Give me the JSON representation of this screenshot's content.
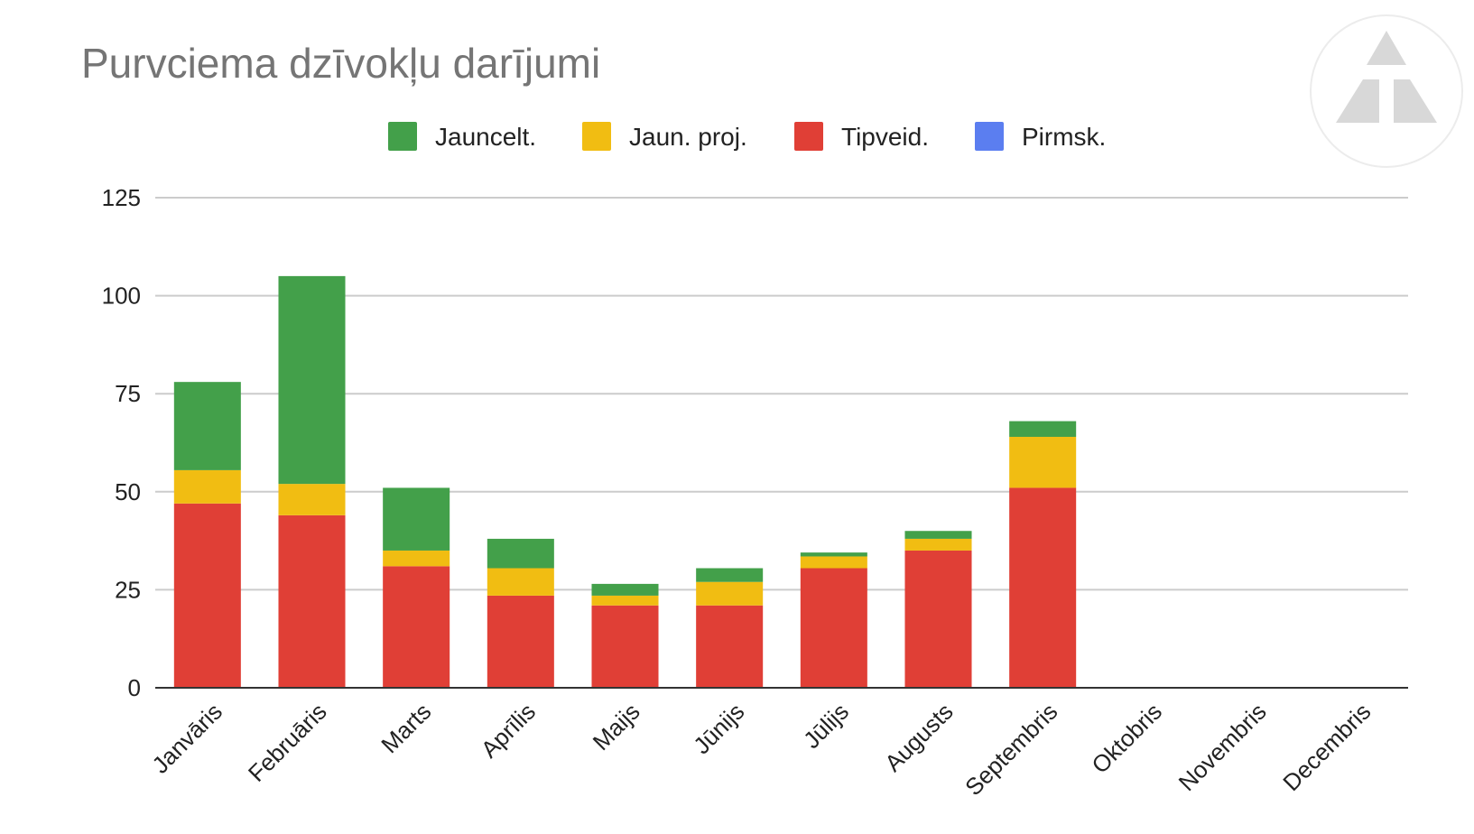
{
  "chart_data": {
    "type": "bar",
    "stacked": true,
    "title": "Purvciema dzīvokļu darījumi",
    "xlabel": "",
    "ylabel": "",
    "ylim": [
      0,
      125
    ],
    "yticks": [
      0,
      25,
      50,
      75,
      100,
      125
    ],
    "grid": true,
    "legend_position": "top",
    "categories": [
      "Janvāris",
      "Februāris",
      "Marts",
      "Aprīlis",
      "Maijs",
      "Jūnijs",
      "Jūlijs",
      "Augusts",
      "Septembris",
      "Oktobris",
      "Novembris",
      "Decembris"
    ],
    "series": [
      {
        "name": "Jauncelt.",
        "color": "#43a04a",
        "values": [
          22.5,
          53,
          16,
          7.5,
          3,
          3.5,
          1,
          2,
          4,
          0,
          0,
          0
        ]
      },
      {
        "name": "Jaun. proj.",
        "color": "#f1bd12",
        "values": [
          8.5,
          8,
          4,
          7,
          2.5,
          6,
          3,
          3,
          13,
          0,
          0,
          0
        ]
      },
      {
        "name": "Tipveid.",
        "color": "#e03f36",
        "values": [
          47,
          44,
          31,
          23.5,
          21,
          21,
          30.5,
          35,
          51,
          0,
          0,
          0
        ]
      },
      {
        "name": "Pirmsk.",
        "color": "#5b7ef0",
        "values": [
          0,
          0,
          0,
          0,
          0,
          0,
          0,
          0,
          0,
          0,
          0,
          0
        ]
      }
    ]
  },
  "watermark": {
    "icon": "triangle-logo-icon"
  }
}
